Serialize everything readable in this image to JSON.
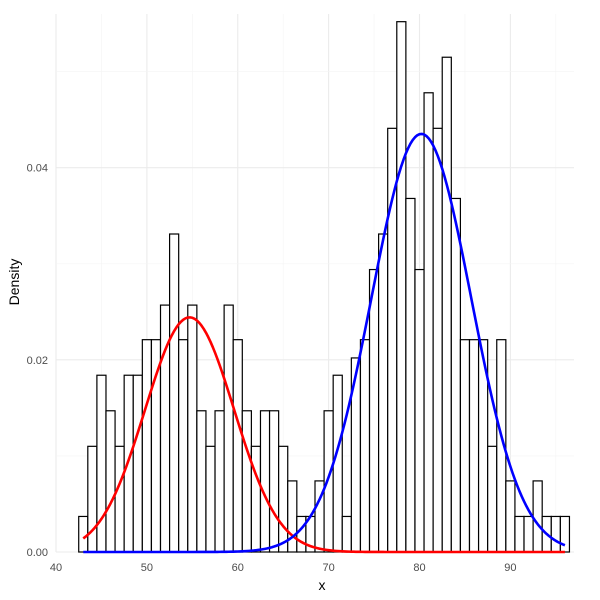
{
  "chart_data": {
    "type": "histogram",
    "xlabel": "x",
    "ylabel": "Density",
    "xlim": [
      40,
      97
    ],
    "ylim": [
      0,
      0.056
    ],
    "x_ticks": [
      40,
      50,
      60,
      70,
      80,
      90
    ],
    "x_tick_labels": [
      "40",
      "50",
      "60",
      "70",
      "80",
      "90"
    ],
    "y_ticks": [
      0,
      0.02,
      0.04
    ],
    "y_tick_labels": [
      "0.00",
      "0.02",
      "0.04"
    ],
    "grid": true,
    "bin_width": 1,
    "bins_start": 42.5,
    "densities": [
      0.0037,
      0.011,
      0.0184,
      0.0147,
      0.011,
      0.0184,
      0.0184,
      0.0221,
      0.0221,
      0.0257,
      0.0331,
      0.0221,
      0.0257,
      0.0147,
      0.011,
      0.0147,
      0.0257,
      0.0221,
      0.0147,
      0.011,
      0.0147,
      0.0147,
      0.011,
      0.0074,
      0.0037,
      0.0037,
      0.0074,
      0.0147,
      0.0184,
      0.0037,
      0.0202,
      0.0221,
      0.0294,
      0.0331,
      0.0441,
      0.0552,
      0.0368,
      0.0294,
      0.0478,
      0.0441,
      0.0515,
      0.0368,
      0.0221,
      0.0221,
      0.0221,
      0.011,
      0.0221,
      0.0074,
      0.0037,
      0.0037,
      0.0074,
      0.0037,
      0.0037,
      0.0037
    ],
    "bar_fill": "#ffffff",
    "bar_stroke": "#000000",
    "curves": [
      {
        "color": "#ff0000",
        "mean": 54.7,
        "sd": 4.9,
        "scale": 0.3,
        "x_from": 43,
        "x_to": 96
      },
      {
        "color": "#0000ff",
        "mean": 80.2,
        "sd": 5.5,
        "scale": 0.6,
        "x_from": 43,
        "x_to": 96
      }
    ]
  }
}
